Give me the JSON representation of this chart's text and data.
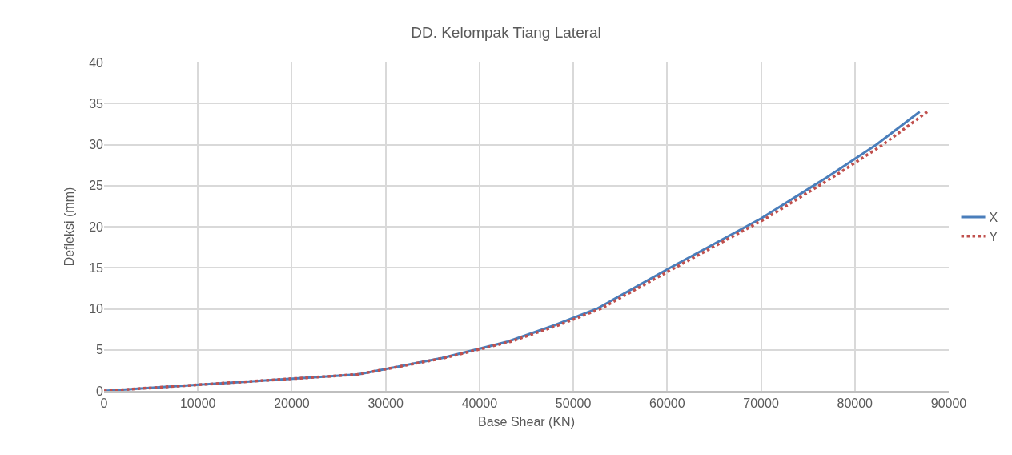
{
  "chart_data": {
    "type": "line",
    "title": "DD. Kelompak Tiang Lateral",
    "xlabel": "Base Shear (KN)",
    "ylabel": "Defleksi (mm)",
    "xlim": [
      0,
      90000
    ],
    "xticks": [
      0,
      10000,
      20000,
      30000,
      40000,
      50000,
      60000,
      70000,
      80000,
      90000
    ],
    "ylim": [
      0,
      40
    ],
    "yticks": [
      0,
      5,
      10,
      15,
      20,
      25,
      30,
      35,
      40
    ],
    "grid": true,
    "legend": "right",
    "marker": "none",
    "series": [
      {
        "name": "X",
        "color": "#4a7ebb",
        "line_style": "solid",
        "x": [
          0,
          27000,
          36000,
          43000,
          48000,
          52500,
          60000,
          70000,
          77000,
          82300,
          86900
        ],
        "values": [
          0,
          2,
          4,
          6,
          8,
          10,
          14.8,
          21,
          26,
          30,
          34
        ]
      },
      {
        "name": "Y",
        "color": "#c0504d",
        "line_style": "dotted",
        "x": [
          0,
          27000,
          36200,
          43300,
          48400,
          52900,
          60500,
          70500,
          77600,
          83000,
          87700
        ],
        "values": [
          0,
          2,
          4,
          6,
          8,
          10,
          14.8,
          21,
          26,
          30,
          34
        ]
      }
    ]
  }
}
